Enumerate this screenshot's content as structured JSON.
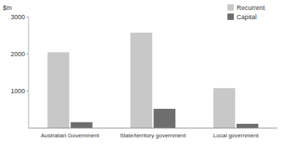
{
  "chart_data": {
    "type": "bar",
    "categories": [
      "Australian Government",
      "State/territory government",
      "Local government"
    ],
    "series": [
      {
        "name": "Recurrent",
        "color": "#c8c8c8",
        "values": [
          2050,
          2580,
          1080
        ]
      },
      {
        "name": "Capital",
        "color": "#6e6e6e",
        "values": [
          160,
          520,
          115
        ]
      }
    ],
    "ylabel": "$m",
    "ylim": [
      0,
      3000
    ],
    "yticks": [
      1000,
      2000,
      3000
    ],
    "legend": "upper right"
  }
}
